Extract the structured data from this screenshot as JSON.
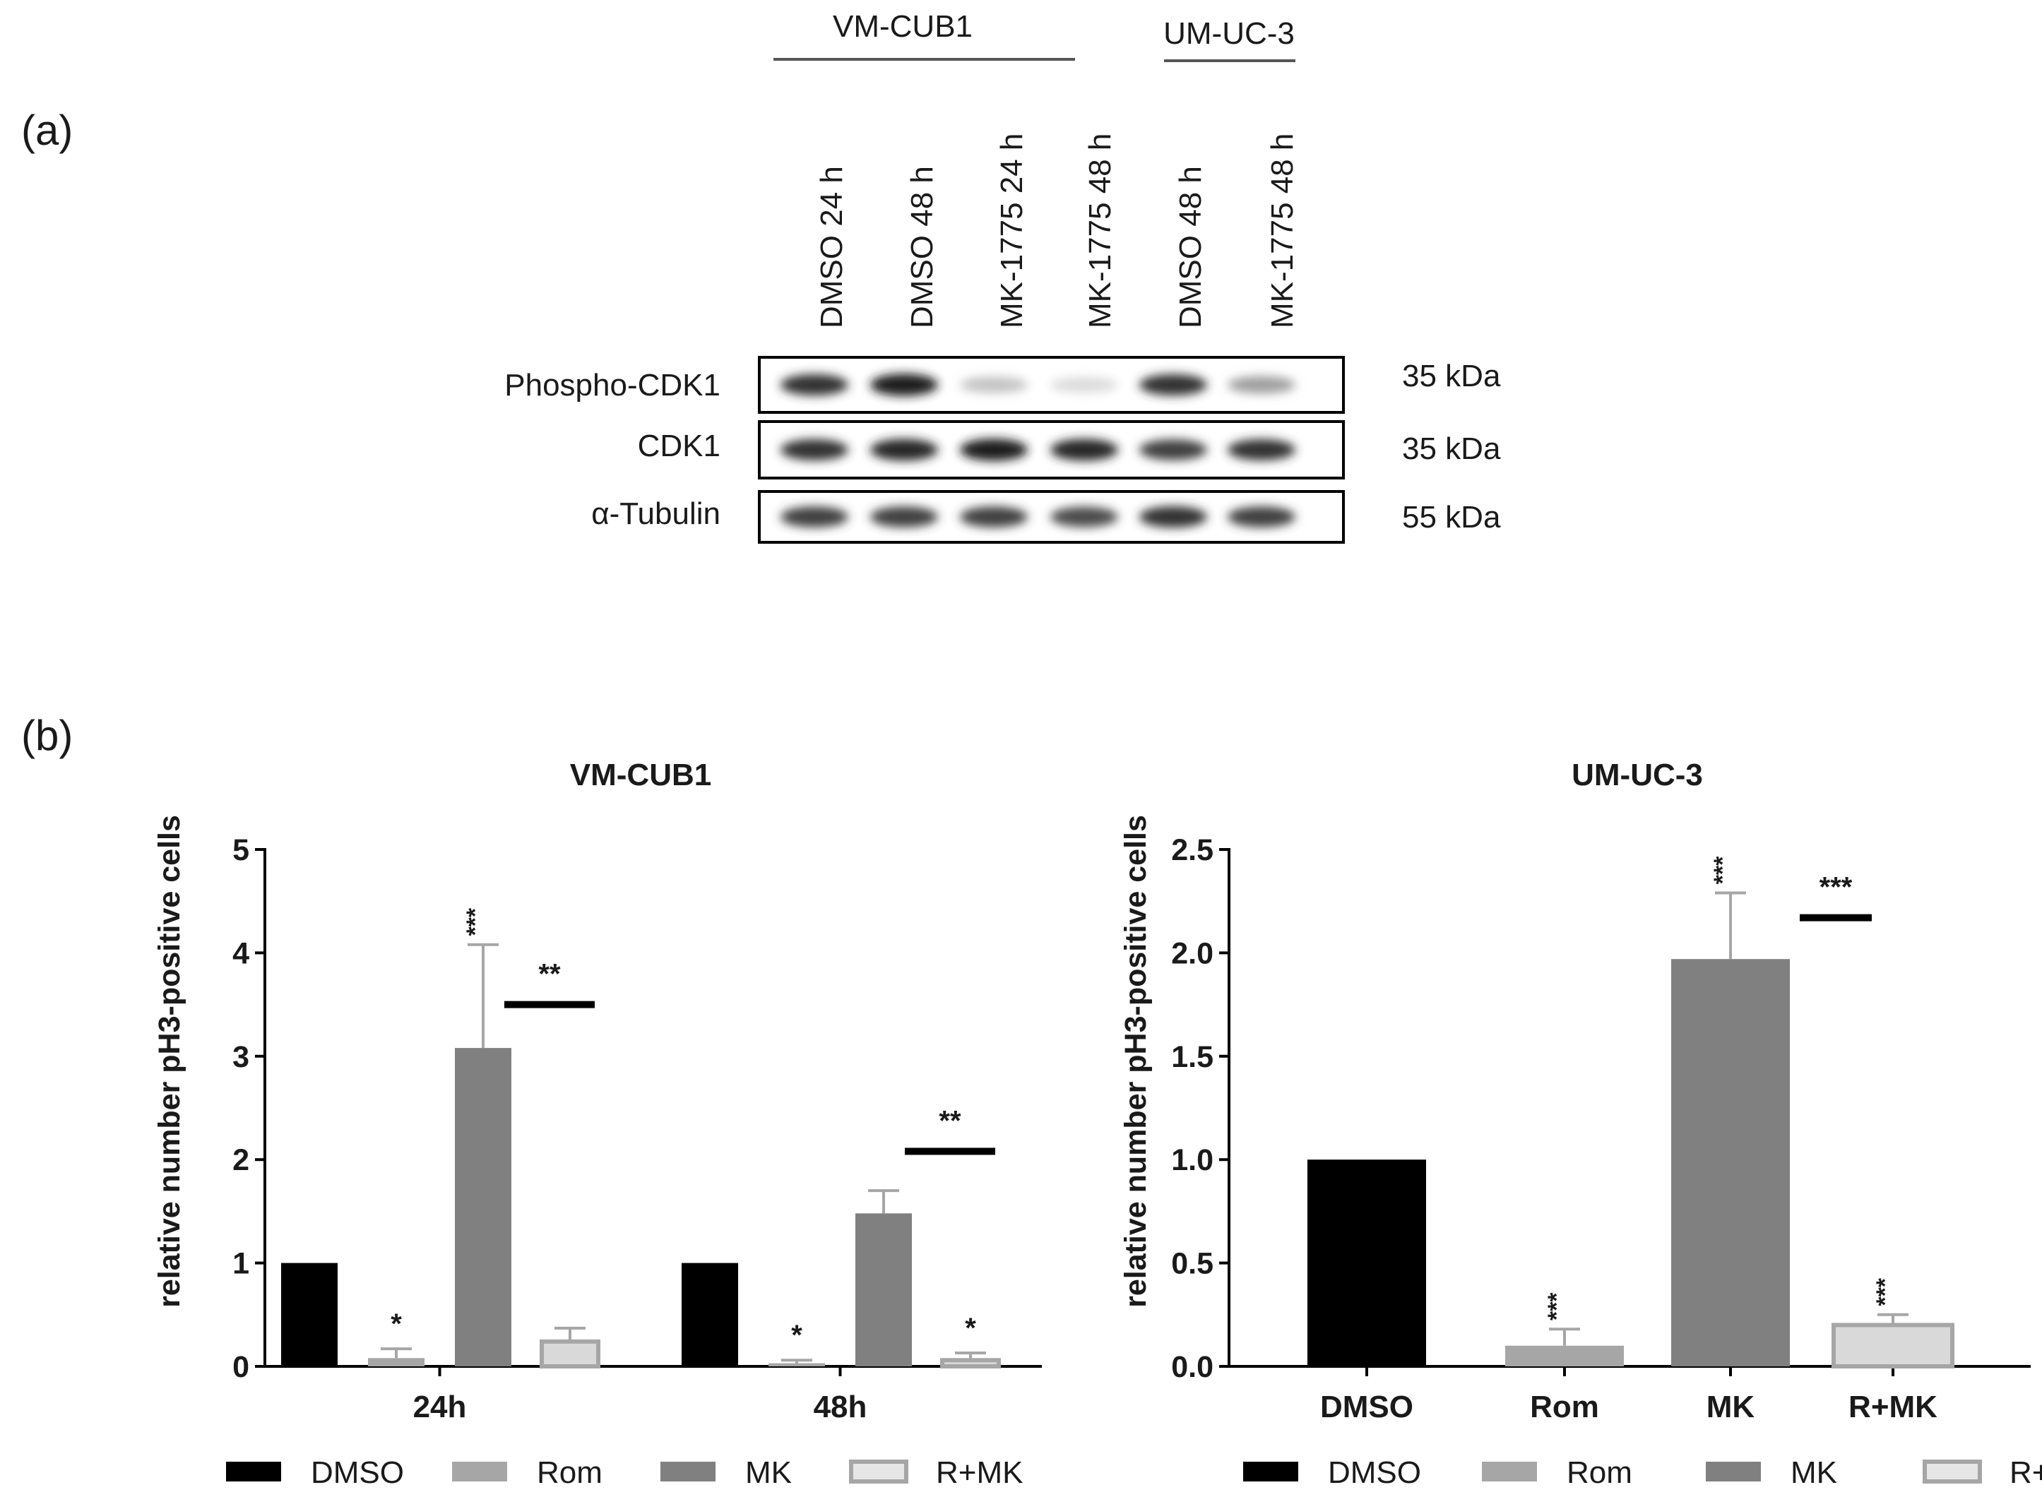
{
  "panel_a": {
    "label": "(a)",
    "groups": [
      {
        "name": "VM-CUB1"
      },
      {
        "name": "UM-UC-3"
      }
    ],
    "lanes": [
      "DMSO 24 h",
      "DMSO 48 h",
      "MK-1775 24 h",
      "MK-1775 48 h",
      "DMSO 48 h",
      "MK-1775 48 h"
    ],
    "rows": [
      {
        "protein": "Phospho-CDK1",
        "weight": "35 kDa",
        "intensity": [
          0.85,
          0.95,
          0.25,
          0.15,
          0.85,
          0.4
        ]
      },
      {
        "protein": "CDK1",
        "weight": "35 kDa",
        "intensity": [
          0.85,
          0.9,
          0.95,
          0.9,
          0.8,
          0.85
        ]
      },
      {
        "protein": "α-Tubulin",
        "weight": "55 kDa",
        "intensity": [
          0.8,
          0.8,
          0.8,
          0.75,
          0.85,
          0.8
        ]
      }
    ]
  },
  "panel_b": {
    "label": "(b)"
  },
  "chart_data": [
    {
      "type": "bar",
      "title": "VM-CUB1",
      "ylabel": "relative number pH3-positive cells",
      "xlabel": "",
      "ylim": [
        0,
        5
      ],
      "yticks": [
        "0",
        "1",
        "2",
        "3",
        "4",
        "5"
      ],
      "categories": [
        "24h",
        "48h"
      ],
      "series": [
        {
          "name": "DMSO",
          "color": "#000000",
          "values": [
            1.0,
            1.0
          ],
          "errors": [
            0,
            0
          ],
          "sig": [
            "",
            ""
          ]
        },
        {
          "name": "Rom",
          "color": "#a6a6a6",
          "values": [
            0.08,
            0.03
          ],
          "errors": [
            0.09,
            0.03
          ],
          "sig": [
            "*",
            "*"
          ]
        },
        {
          "name": "MK",
          "color": "#808080",
          "values": [
            3.08,
            1.48
          ],
          "errors": [
            1.0,
            0.22
          ],
          "sig": [
            "***",
            ""
          ]
        },
        {
          "name": "R+MK",
          "color": "#bfbfbf",
          "values": [
            0.24,
            0.06
          ],
          "errors": [
            0.13,
            0.07
          ],
          "sig": [
            "",
            "*"
          ]
        }
      ],
      "comparisons": [
        {
          "label": "**",
          "category": "24h",
          "y": 3.5
        },
        {
          "label": "**",
          "category": "48h",
          "y": 2.08
        }
      ]
    },
    {
      "type": "bar",
      "title": "UM-UC-3",
      "ylabel": "relative number pH3-positive cells",
      "xlabel": "",
      "ylim": [
        0,
        2.5
      ],
      "yticks": [
        "0.0",
        "0.5",
        "1.0",
        "1.5",
        "2.0",
        "2.5"
      ],
      "categories": [
        "DMSO",
        "Rom",
        "MK",
        "R+MK"
      ],
      "series": [
        {
          "name": "DMSO",
          "color": "#000000",
          "values": [
            1.0,
            null,
            null,
            null
          ],
          "errors": [
            0,
            null,
            null,
            null
          ],
          "sig": [
            "",
            "",
            "",
            ""
          ]
        },
        {
          "name": "Rom",
          "color": "#a6a6a6",
          "values": [
            null,
            0.1,
            null,
            null
          ],
          "errors": [
            null,
            0.08,
            null,
            null
          ],
          "sig": [
            "",
            "***",
            "",
            ""
          ]
        },
        {
          "name": "MK",
          "color": "#808080",
          "values": [
            null,
            null,
            1.97,
            null
          ],
          "errors": [
            null,
            null,
            0.32,
            null
          ],
          "sig": [
            "",
            "",
            "***",
            ""
          ]
        },
        {
          "name": "R+MK",
          "color": "#bfbfbf",
          "values": [
            null,
            null,
            null,
            0.2
          ],
          "errors": [
            null,
            null,
            null,
            0.05
          ],
          "sig": [
            "",
            "",
            "",
            "***"
          ]
        }
      ],
      "comparisons": [
        {
          "label": "***",
          "between": [
            "MK",
            "R+MK"
          ],
          "y": 2.17
        }
      ]
    }
  ]
}
